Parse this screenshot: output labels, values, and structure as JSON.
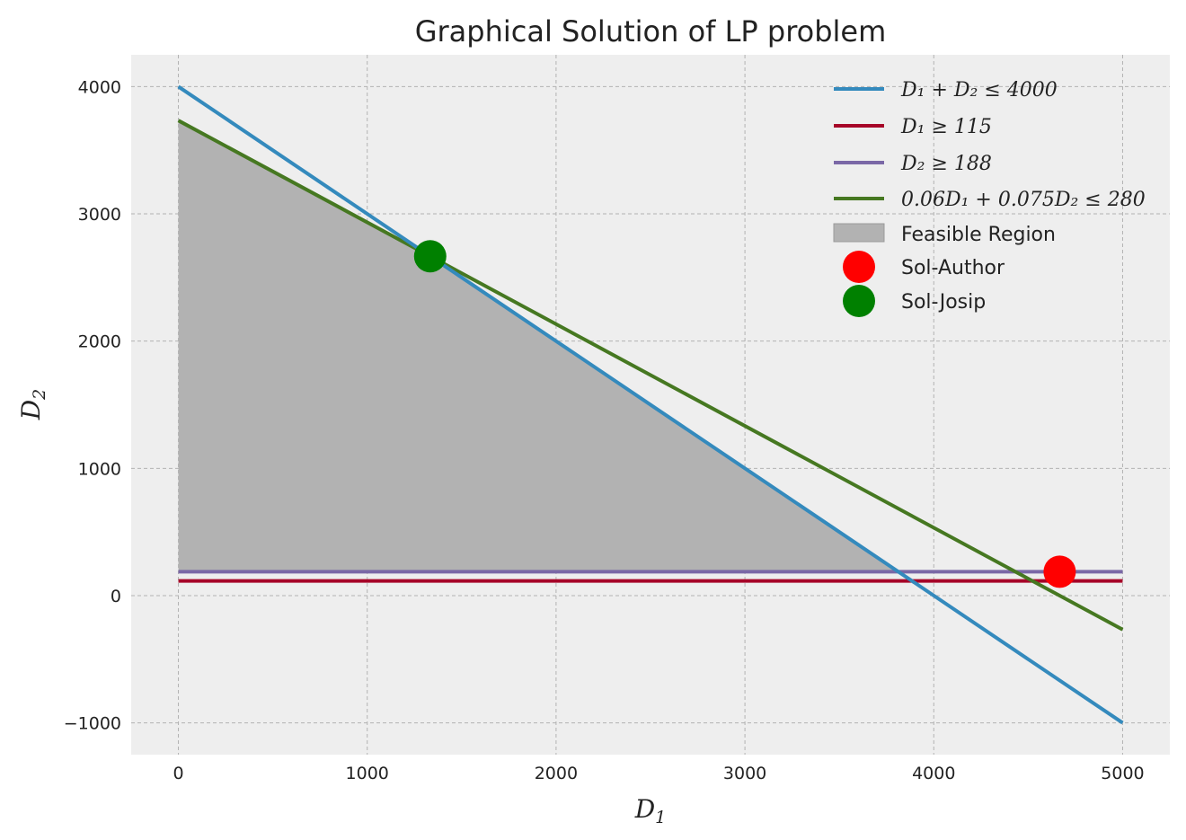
{
  "chart_data": {
    "type": "line",
    "title": "Graphical Solution of LP problem",
    "xlabel_main": "D",
    "xlabel_sub": "1",
    "ylabel_main": "D",
    "ylabel_sub": "2",
    "xlim": [
      -250,
      5250
    ],
    "ylim": [
      -1250,
      4250
    ],
    "x_ticks": [
      0,
      1000,
      2000,
      3000,
      4000,
      5000
    ],
    "y_ticks": [
      -1000,
      0,
      1000,
      2000,
      3000,
      4000
    ],
    "x_tick_labels": [
      "0",
      "1000",
      "2000",
      "3000",
      "4000",
      "5000"
    ],
    "y_tick_labels": [
      "−1000",
      "0",
      "1000",
      "2000",
      "3000",
      "4000"
    ],
    "grid": true,
    "legend_position": "top-right",
    "series": [
      {
        "name": "D₁ + D₂ ≤ 4000",
        "color": "#348ABD",
        "x": [
          0,
          5000
        ],
        "y": [
          4000,
          -1000
        ]
      },
      {
        "name": "D₁ ≥ 115",
        "color": "#A60628",
        "x": [
          0,
          5000
        ],
        "y": [
          115,
          115
        ]
      },
      {
        "name": "D₂ ≥ 188",
        "color": "#7A68A6",
        "x": [
          0,
          5000
        ],
        "y": [
          188,
          188
        ]
      },
      {
        "name": "0.06D₁ + 0.075D₂ ≤ 280",
        "color": "#467821",
        "x": [
          0,
          5000
        ],
        "y": [
          3733.3,
          -266.7
        ]
      }
    ],
    "feasible_region": {
      "name": "Feasible Region",
      "color": "#b2b2b2",
      "polygon": [
        [
          0,
          188
        ],
        [
          0,
          3733.3
        ],
        [
          1333.3,
          2666.7
        ],
        [
          3812,
          188
        ]
      ]
    },
    "points": [
      {
        "name": "Sol-Author",
        "color": "#ff0000",
        "x": 4666.7,
        "y": 188
      },
      {
        "name": "Sol-Josip",
        "color": "#008000",
        "x": 1333.3,
        "y": 2666.7
      }
    ]
  }
}
